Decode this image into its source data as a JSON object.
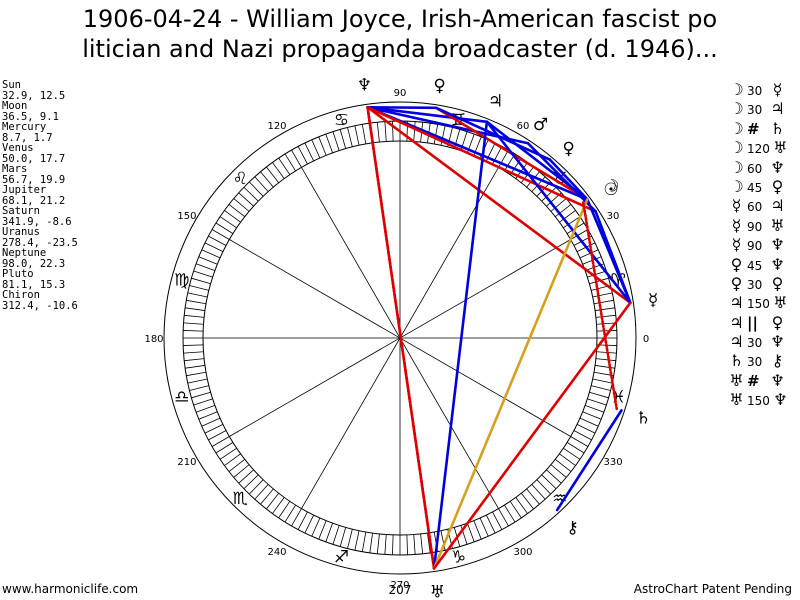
{
  "title": {
    "line1": "1906-04-24 - William Joyce, Irish-American fascist po",
    "line2": "litician and Nazi propaganda broadcaster (d. 1946)..."
  },
  "planets": [
    {
      "name": "Sun",
      "symbol": "☉",
      "lon": 32.9,
      "lat": 12.5,
      "coords": "32.9, 12.5"
    },
    {
      "name": "Moon",
      "symbol": "☽",
      "lon": 36.5,
      "lat": 9.1,
      "coords": "36.5, 9.1"
    },
    {
      "name": "Mercury",
      "symbol": "☿",
      "lon": 8.7,
      "lat": 1.7,
      "coords": "8.7, 1.7"
    },
    {
      "name": "Venus",
      "symbol": "♀",
      "lon": 50.0,
      "lat": 17.7,
      "coords": "50.0, 17.7"
    },
    {
      "name": "Mars",
      "symbol": "♂",
      "lon": 56.7,
      "lat": 19.9,
      "coords": "56.7, 19.9"
    },
    {
      "name": "Jupiter",
      "symbol": "♃",
      "lon": 68.1,
      "lat": 21.2,
      "coords": "68.1, 21.2"
    },
    {
      "name": "Saturn",
      "symbol": "♄",
      "lon": 341.9,
      "lat": -8.6,
      "coords": "341.9, -8.6"
    },
    {
      "name": "Uranus",
      "symbol": "♅",
      "lon": 278.4,
      "lat": -23.5,
      "coords": "278.4, -23.5"
    },
    {
      "name": "Neptune",
      "symbol": "♆",
      "lon": 98.0,
      "lat": 22.3,
      "coords": "98.0, 22.3"
    },
    {
      "name": "Pluto",
      "symbol": "♀",
      "lon": 81.1,
      "lat": 15.3,
      "coords": "81.1, 15.3"
    },
    {
      "name": "Chiron",
      "symbol": "⚷",
      "lon": 312.4,
      "lat": -10.6,
      "coords": "312.4, -10.6"
    }
  ],
  "aspects": [
    {
      "p1": "☽",
      "value": "30",
      "p2": "☿"
    },
    {
      "p1": "☽",
      "value": "30",
      "p2": "♃"
    },
    {
      "p1": "☽",
      "value": "#",
      "p2": "♄"
    },
    {
      "p1": "☽",
      "value": "120",
      "p2": "♅"
    },
    {
      "p1": "☽",
      "value": "60",
      "p2": "♆"
    },
    {
      "p1": "☽",
      "value": "45",
      "p2": "♀"
    },
    {
      "p1": "☿",
      "value": "60",
      "p2": "♃"
    },
    {
      "p1": "☿",
      "value": "90",
      "p2": "♅"
    },
    {
      "p1": "☿",
      "value": "90",
      "p2": "♆"
    },
    {
      "p1": "♀",
      "value": "45",
      "p2": "♆"
    },
    {
      "p1": "♀",
      "value": "30",
      "p2": "♀"
    },
    {
      "p1": "♃",
      "value": "150",
      "p2": "♅"
    },
    {
      "p1": "♃",
      "value": "||",
      "p2": "♀"
    },
    {
      "p1": "♃",
      "value": "30",
      "p2": "♆"
    },
    {
      "p1": "♄",
      "value": "30",
      "p2": "⚷"
    },
    {
      "p1": "♅",
      "value": "#",
      "p2": "♆"
    },
    {
      "p1": "♅",
      "value": "150",
      "p2": "♆"
    }
  ],
  "wheel": {
    "degree_labels": [
      {
        "deg": 0,
        "text": "0"
      },
      {
        "deg": 30,
        "text": "30"
      },
      {
        "deg": 60,
        "text": "60"
      },
      {
        "deg": 90,
        "text": "90"
      },
      {
        "deg": 120,
        "text": "120"
      },
      {
        "deg": 150,
        "text": "150"
      },
      {
        "deg": 180,
        "text": "180"
      },
      {
        "deg": 210,
        "text": "210"
      },
      {
        "deg": 240,
        "text": "240"
      },
      {
        "deg": 270,
        "text": "270"
      },
      {
        "deg": 300,
        "text": "300"
      },
      {
        "deg": 330,
        "text": "330"
      }
    ],
    "sign_glyphs": [
      {
        "deg": 15,
        "glyph": "♈"
      },
      {
        "deg": 45,
        "glyph": "♉"
      },
      {
        "deg": 75,
        "glyph": "♊"
      },
      {
        "deg": 105,
        "glyph": "♋"
      },
      {
        "deg": 135,
        "glyph": "♌"
      },
      {
        "deg": 165,
        "glyph": "♍"
      },
      {
        "deg": 195,
        "glyph": "♎"
      },
      {
        "deg": 225,
        "glyph": "♏"
      },
      {
        "deg": 255,
        "glyph": "♐"
      },
      {
        "deg": 285,
        "glyph": "♑"
      },
      {
        "deg": 315,
        "glyph": "♒"
      },
      {
        "deg": 345,
        "glyph": "♓"
      }
    ],
    "bottom_value": "207"
  },
  "aspect_lines": [
    {
      "a": 98.0,
      "b": 56.7,
      "color": "#0000dd"
    },
    {
      "a": 98.0,
      "b": 68.1,
      "color": "#0000dd"
    },
    {
      "a": 98.0,
      "b": 81.1,
      "color": "#0000dd"
    },
    {
      "a": 98.0,
      "b": 36.5,
      "color": "#0000dd"
    },
    {
      "a": 98.0,
      "b": 8.7,
      "color": "#dd0000"
    },
    {
      "a": 98.0,
      "b": 32.9,
      "color": "#dd0000"
    },
    {
      "a": 98.0,
      "b": 278.4,
      "color": "#dd0000"
    },
    {
      "a": 98.0,
      "b": 278.4,
      "color": "#dd0000",
      "dashed": true
    },
    {
      "a": 81.1,
      "b": 36.5,
      "color": "#dd0000"
    },
    {
      "a": 81.1,
      "b": 50.0,
      "color": "#0000dd"
    },
    {
      "a": 68.1,
      "b": 36.5,
      "color": "#0000dd"
    },
    {
      "a": 68.1,
      "b": 8.7,
      "color": "#0000dd"
    },
    {
      "a": 68.1,
      "b": 278.4,
      "color": "#0000dd"
    },
    {
      "a": 56.7,
      "b": 32.9,
      "color": "#0000dd"
    },
    {
      "a": 50.0,
      "b": 36.5,
      "color": "#0000dd"
    },
    {
      "a": 36.5,
      "b": 8.7,
      "color": "#0000dd"
    },
    {
      "a": 32.9,
      "b": 8.7,
      "color": "#0000dd"
    },
    {
      "a": 36.5,
      "b": 278.4,
      "color": "#d4a020"
    },
    {
      "a": 36.5,
      "b": 341.9,
      "color": "#dd0000",
      "dashed": true
    },
    {
      "a": 8.7,
      "b": 278.4,
      "color": "#dd0000"
    },
    {
      "a": 341.9,
      "b": 312.4,
      "color": "#0000dd"
    }
  ]
}
